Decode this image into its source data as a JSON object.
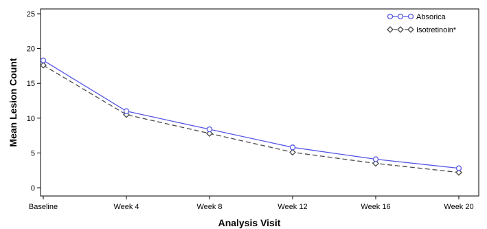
{
  "chart_data": {
    "type": "line",
    "categories": [
      "Baseline",
      "Week 4",
      "Week 8",
      "Week 12",
      "Week 16",
      "Week 20"
    ],
    "series": [
      {
        "name": "Absorica",
        "values": [
          18.3,
          11.0,
          8.4,
          5.8,
          4.1,
          2.8
        ],
        "color": "#5555e8",
        "marker": "circle",
        "line_style": "solid"
      },
      {
        "name": "Isotretinoin*",
        "values": [
          17.6,
          10.5,
          7.8,
          5.1,
          3.5,
          2.2
        ],
        "color": "#4a4a4a",
        "marker": "diamond",
        "line_style": "dashed"
      }
    ],
    "xlabel": "Analysis Visit",
    "ylabel": "Mean Lesion Count",
    "ylim": [
      0,
      25
    ],
    "yticks": [
      0,
      5,
      10,
      15,
      20,
      25
    ],
    "grid": false,
    "legend_position": "top-right"
  }
}
